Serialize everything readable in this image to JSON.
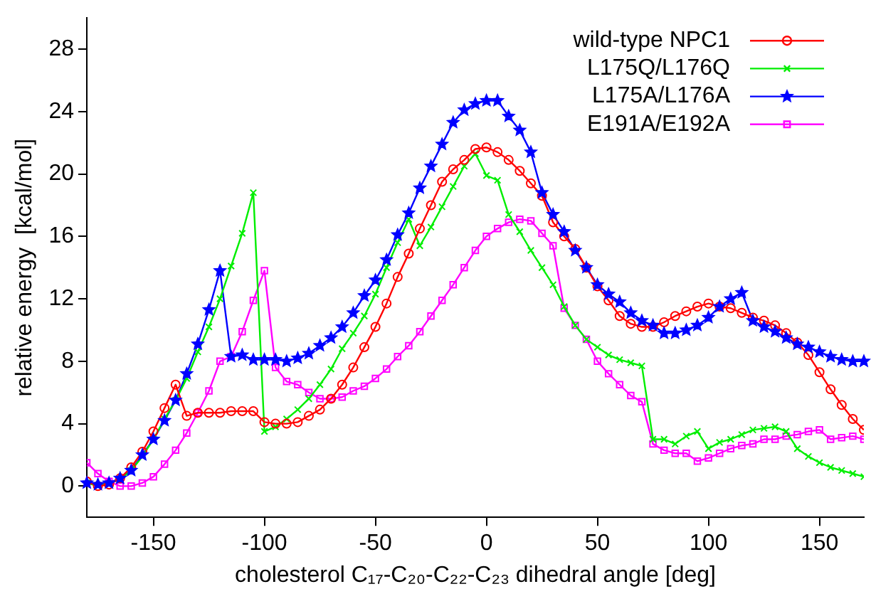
{
  "chart_data": {
    "type": "line",
    "xlabel": "cholesterol C₁₇-C₂₀-C₂₂-C₂₃ dihedral angle [deg]",
    "ylabel": "relative energy  [kcal/mol]",
    "x": [
      -180,
      -175,
      -170,
      -165,
      -160,
      -155,
      -150,
      -145,
      -140,
      -135,
      -130,
      -125,
      -120,
      -115,
      -110,
      -105,
      -100,
      -95,
      -90,
      -85,
      -80,
      -75,
      -70,
      -65,
      -60,
      -55,
      -50,
      -45,
      -40,
      -35,
      -30,
      -25,
      -20,
      -15,
      -10,
      -5,
      0,
      5,
      10,
      15,
      20,
      25,
      30,
      35,
      40,
      45,
      50,
      55,
      60,
      65,
      70,
      75,
      80,
      85,
      90,
      95,
      100,
      105,
      110,
      115,
      120,
      125,
      130,
      135,
      140,
      145,
      150,
      155,
      160,
      165,
      170
    ],
    "series": [
      {
        "name": "wild-type NPC1",
        "color": "#ff0000",
        "marker": "circle",
        "values": [
          0.3,
          0,
          0.1,
          0.5,
          1.2,
          2.2,
          3.5,
          5.0,
          6.5,
          4.5,
          4.7,
          4.7,
          4.7,
          4.8,
          4.8,
          4.8,
          4.1,
          4.0,
          4.0,
          4.1,
          4.5,
          4.9,
          5.6,
          6.5,
          7.6,
          8.9,
          10.2,
          11.7,
          13.4,
          14.9,
          16.5,
          18.0,
          19.5,
          20.3,
          20.9,
          21.6,
          21.7,
          21.4,
          20.9,
          20.2,
          19.4,
          18.6,
          16.9,
          16.0,
          15.2,
          14.0,
          12.8,
          11.9,
          10.9,
          10.4,
          10.2,
          10.2,
          10.5,
          10.9,
          11.2,
          11.5,
          11.7,
          11.5,
          11.4,
          11.1,
          10.8,
          10.6,
          10.3,
          9.8,
          9.2,
          8.4,
          7.3,
          6.2,
          5.2,
          4.3,
          3.6
        ]
      },
      {
        "name": "L175Q/L176Q",
        "color": "#00ee00",
        "marker": "cross",
        "values": [
          0.2,
          0,
          null,
          0.4,
          1.0,
          1.9,
          3.0,
          4.3,
          5.5,
          6.9,
          8.6,
          10.2,
          12.0,
          14.1,
          16.2,
          18.8,
          3.5,
          3.8,
          4.3,
          4.9,
          5.6,
          6.5,
          7.5,
          8.8,
          9.8,
          10.9,
          12.3,
          14.0,
          15.6,
          17.1,
          15.4,
          16.6,
          17.9,
          19.2,
          20.5,
          21.3,
          19.9,
          19.6,
          17.4,
          16.3,
          15.1,
          14.0,
          12.9,
          11.5,
          10.3,
          9.4,
          8.9,
          8.4,
          8.1,
          7.9,
          7.7,
          3.0,
          3.0,
          2.7,
          3.2,
          3.5,
          2.4,
          2.8,
          3.0,
          3.3,
          3.6,
          3.7,
          3.8,
          3.5,
          2.4,
          1.9,
          1.5,
          1.2,
          1.0,
          0.8,
          0.6
        ]
      },
      {
        "name": "L175A/L176A",
        "color": "#0000ff",
        "marker": "star",
        "values": [
          0.2,
          0.1,
          0.2,
          0.5,
          1.0,
          2.0,
          3.0,
          4.2,
          5.5,
          7.2,
          9.1,
          11.3,
          13.8,
          8.3,
          8.4,
          8.1,
          8.1,
          8.1,
          8.0,
          8.2,
          8.5,
          9.0,
          9.5,
          10.2,
          11.1,
          12.2,
          13.2,
          14.5,
          16.1,
          17.5,
          19.1,
          20.5,
          21.9,
          23.3,
          24.1,
          24.5,
          24.7,
          24.7,
          23.7,
          22.8,
          21.4,
          18.8,
          17.4,
          16.3,
          15.1,
          14.0,
          12.9,
          12.3,
          11.8,
          11.1,
          10.6,
          10.3,
          9.8,
          9.8,
          10.0,
          10.3,
          10.8,
          11.5,
          12.0,
          12.4,
          10.6,
          10.2,
          9.9,
          9.5,
          9.1,
          8.9,
          8.6,
          8.3,
          8.1,
          8.0,
          8.0
        ]
      },
      {
        "name": "E191A/E192A",
        "color": "#ff00ff",
        "marker": "square",
        "values": [
          1.5,
          0.8,
          0.3,
          0,
          0,
          0.2,
          0.6,
          1.4,
          2.3,
          3.4,
          4.7,
          6.1,
          8.0,
          8.3,
          9.9,
          11.9,
          13.8,
          7.6,
          6.7,
          6.5,
          6.0,
          5.6,
          5.6,
          5.7,
          6.1,
          6.4,
          6.9,
          7.5,
          8.3,
          9.0,
          9.9,
          10.9,
          11.9,
          12.9,
          14.0,
          15.1,
          16.0,
          16.5,
          16.9,
          17.1,
          17.0,
          16.2,
          15.4,
          11.4,
          10.3,
          9.4,
          8.0,
          7.2,
          6.5,
          5.8,
          5.4,
          2.7,
          2.3,
          2.1,
          2.1,
          1.6,
          1.8,
          2.1,
          2.4,
          2.6,
          2.7,
          3.0,
          3.0,
          3.2,
          3.3,
          3.5,
          3.6,
          3.0,
          3.1,
          3.2,
          3.0
        ]
      }
    ],
    "xlim": [
      -180,
      170
    ],
    "xticks": [
      -150,
      -100,
      -50,
      0,
      50,
      100,
      150
    ],
    "ylim": [
      -2,
      30
    ],
    "yticks": [
      0,
      4,
      8,
      12,
      16,
      20,
      24,
      28
    ],
    "grid": false,
    "legend": "top right",
    "line_style": "solid"
  }
}
